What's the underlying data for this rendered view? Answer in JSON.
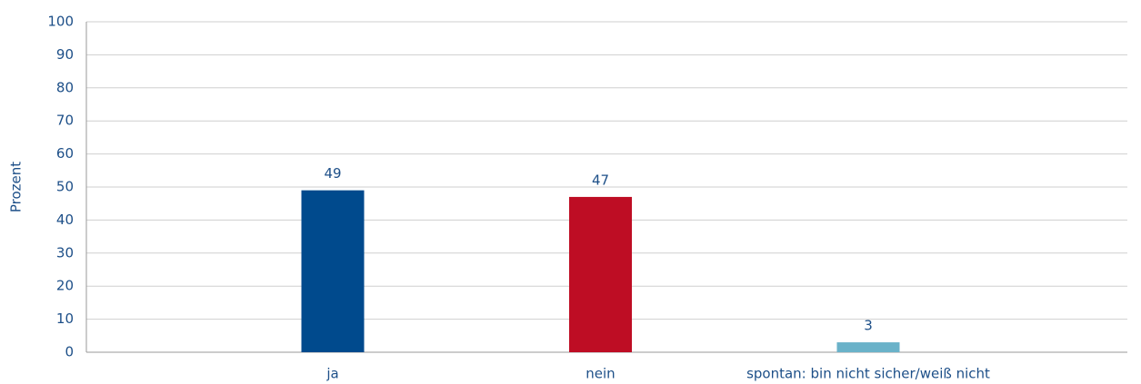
{
  "chart_data": {
    "type": "bar",
    "ylabel": "Prozent",
    "categories": [
      "ja",
      "nein",
      "spontan: bin nicht sicher/weiß nicht"
    ],
    "values": [
      49,
      47,
      3
    ],
    "colors": [
      "#004a8d",
      "#be0d24",
      "#6ab2c9"
    ],
    "ylim": [
      0,
      100
    ],
    "yticks": [
      0,
      10,
      20,
      30,
      40,
      50,
      60,
      70,
      80,
      90,
      100
    ],
    "grid": true
  }
}
